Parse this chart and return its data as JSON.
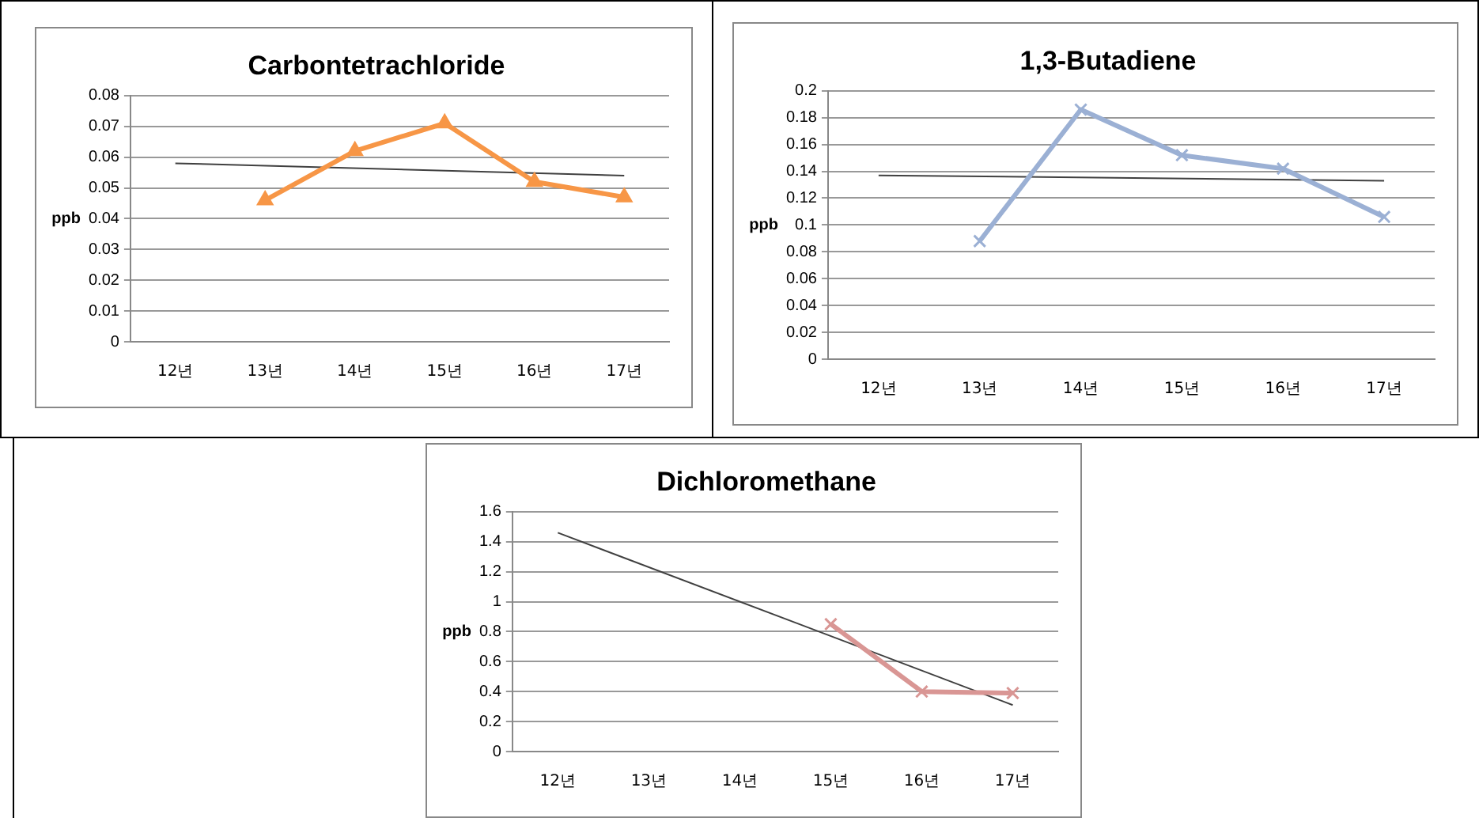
{
  "chart_data": [
    {
      "type": "line",
      "title": "Carbontetrachloride",
      "ylabel": "ppb",
      "categories": [
        "12년",
        "13년",
        "14년",
        "15년",
        "16년",
        "17년"
      ],
      "series": [
        {
          "color": "#f79646",
          "marker": "triangle",
          "values": [
            null,
            0.046,
            0.062,
            0.071,
            0.052,
            0.047
          ]
        },
        {
          "color": "#404040",
          "marker": "none",
          "values": [
            0.058,
            null,
            null,
            null,
            null,
            0.054
          ]
        }
      ],
      "ylim": [
        0,
        0.08
      ],
      "yticks": [
        0,
        0.01,
        0.02,
        0.03,
        0.04,
        0.05,
        0.06,
        0.07,
        0.08
      ],
      "grid": "y",
      "legend": false
    },
    {
      "type": "line",
      "title": "1,3-Butadiene",
      "ylabel": "ppb",
      "categories": [
        "12년",
        "13년",
        "14년",
        "15년",
        "16년",
        "17년"
      ],
      "series": [
        {
          "color": "#9bb0d4",
          "marker": "cross",
          "values": [
            null,
            0.088,
            0.186,
            0.152,
            0.142,
            0.106
          ]
        },
        {
          "color": "#404040",
          "marker": "none",
          "values": [
            0.137,
            null,
            null,
            null,
            null,
            0.133
          ]
        }
      ],
      "ylim": [
        0,
        0.2
      ],
      "yticks": [
        0,
        0.02,
        0.04,
        0.06,
        0.08,
        0.1,
        0.12,
        0.14,
        0.16,
        0.18,
        0.2
      ],
      "grid": "y",
      "legend": false
    },
    {
      "type": "line",
      "title": "Dichloromethane",
      "ylabel": "ppb",
      "categories": [
        "12년",
        "13년",
        "14년",
        "15년",
        "16년",
        "17년"
      ],
      "series": [
        {
          "color": "#d99694",
          "marker": "cross",
          "values": [
            null,
            null,
            null,
            0.85,
            0.4,
            0.39
          ]
        },
        {
          "color": "#404040",
          "marker": "none",
          "values": [
            1.46,
            null,
            null,
            null,
            null,
            0.31
          ]
        }
      ],
      "ylim": [
        0,
        1.6
      ],
      "yticks": [
        0,
        0.2,
        0.4,
        0.6,
        0.8,
        1,
        1.2,
        1.4,
        1.6
      ],
      "grid": "y",
      "legend": false
    }
  ]
}
